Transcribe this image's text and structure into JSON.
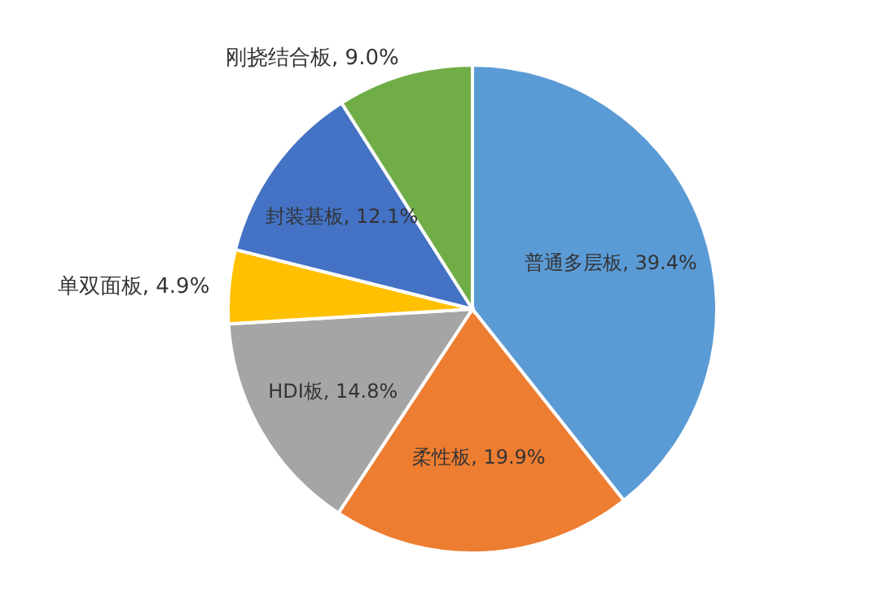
{
  "chart_data": {
    "type": "pie",
    "categories": [
      "普通多层板",
      "柔性板",
      "HDI板",
      "单双面板",
      "封装基板",
      "刚挠结合板"
    ],
    "values": [
      39.4,
      19.9,
      14.8,
      4.9,
      12.1,
      9.0
    ],
    "value_labels": [
      "39.4%",
      "19.9%",
      "14.8%",
      "4.9%",
      "12.1%",
      "9.0%"
    ],
    "colors": [
      "#5b9bd5",
      "#ed7d31",
      "#a5a5a5",
      "#ffc000",
      "#4472c4",
      "#70ad47"
    ],
    "legend": false
  }
}
